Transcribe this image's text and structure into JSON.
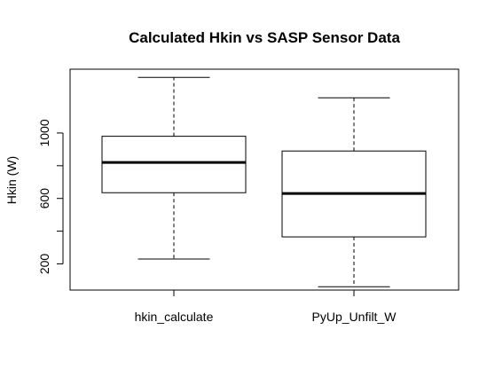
{
  "chart_data": {
    "type": "boxplot",
    "title": "Calculated Hkin vs SASP Sensor Data",
    "xlabel": "",
    "ylabel": "Hkin (W)",
    "ylim": [
      40,
      1390
    ],
    "yticks": [
      200,
      600,
      1000
    ],
    "grid": false,
    "categories": [
      "hkin_calculate",
      "PyUp_Unfilt_W"
    ],
    "series": [
      {
        "min": 230,
        "q1": 635,
        "median": 820,
        "q3": 980,
        "max": 1340
      },
      {
        "min": 60,
        "q1": 365,
        "median": 630,
        "q3": 890,
        "max": 1215
      }
    ],
    "colors": {
      "box_fill": "#ffffff",
      "stroke": "#000000"
    }
  }
}
